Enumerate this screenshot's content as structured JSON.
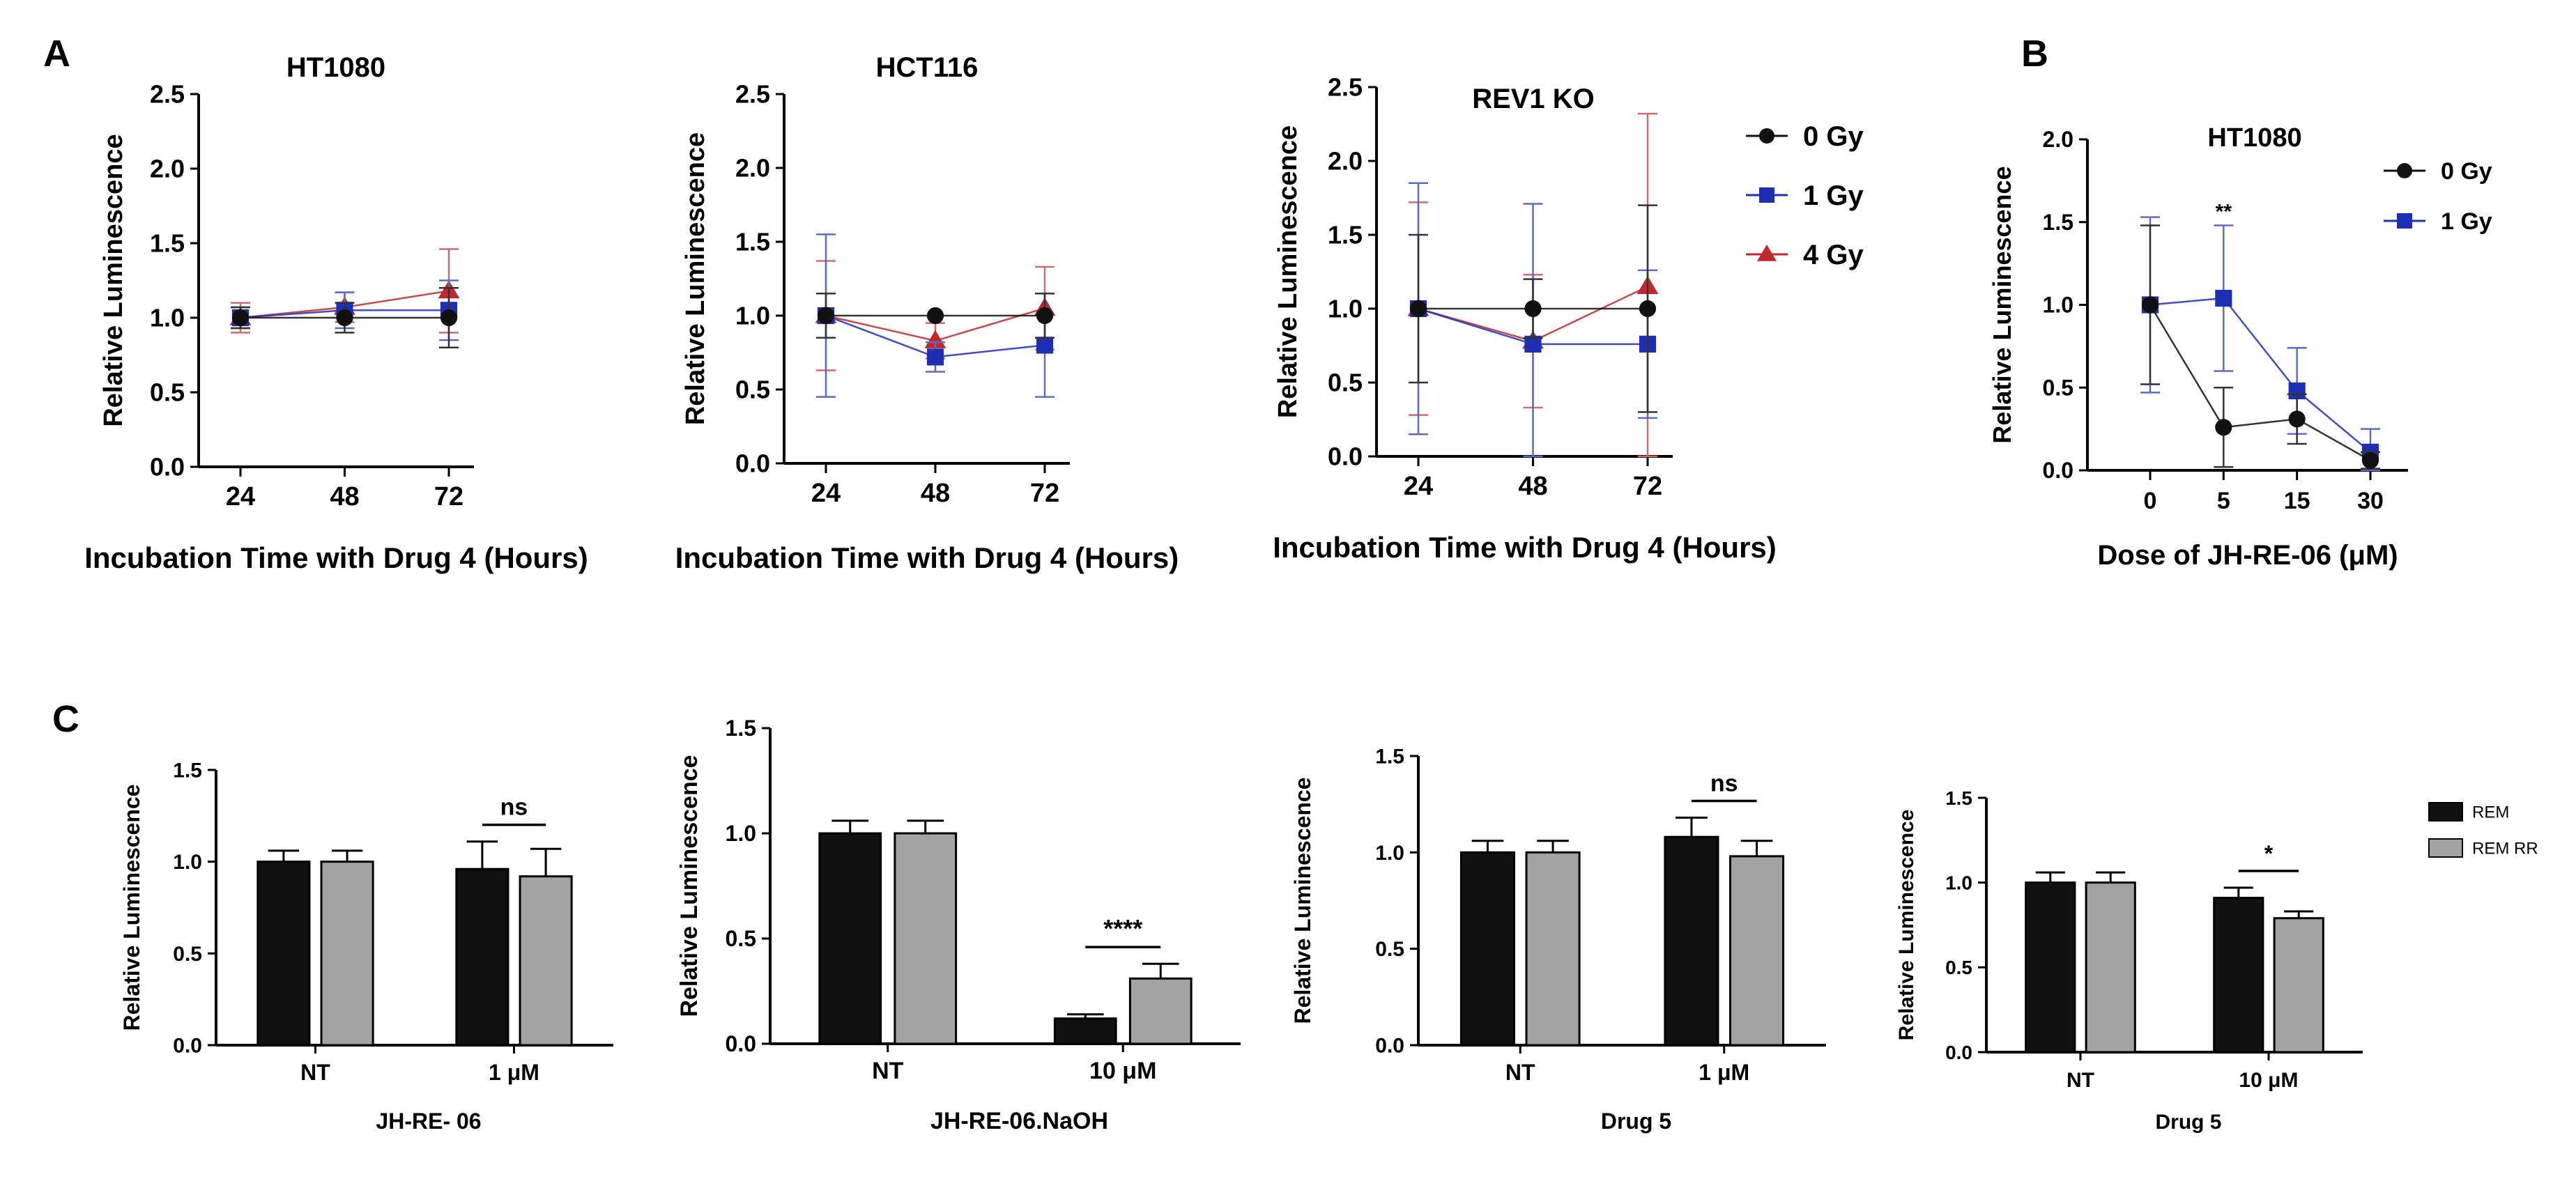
{
  "panel_labels": {
    "a": "A",
    "b": "B",
    "c": "C"
  },
  "colors": {
    "black": "#111111",
    "blue": "#1f2fb4",
    "red": "#c0282d",
    "grey": "#a3a3a3",
    "errblue": "#5b6cc4",
    "errred": "#d06a6e"
  },
  "chart_data": [
    {
      "id": "A1",
      "type": "line",
      "title": "HT1080",
      "xlabel": "Incubation Time with Drug 4 (Hours)",
      "ylabel": "Relative Luminescence",
      "categories": [
        "24",
        "48",
        "72"
      ],
      "ylim": [
        0,
        2.5
      ],
      "yticks": [
        "0.0",
        "0.5",
        "1.0",
        "1.5",
        "2.0",
        "2.5"
      ],
      "series": [
        {
          "name": "0 Gy",
          "values": [
            1.0,
            1.0,
            1.0
          ],
          "err": [
            0.07,
            0.1,
            0.2
          ]
        },
        {
          "name": "1 Gy",
          "values": [
            1.0,
            1.05,
            1.05
          ],
          "err": [
            0.07,
            0.12,
            0.2
          ]
        },
        {
          "name": "4 Gy",
          "values": [
            1.0,
            1.07,
            1.18
          ],
          "err": [
            0.1,
            0.1,
            0.28
          ]
        }
      ]
    },
    {
      "id": "A2",
      "type": "line",
      "title": "HCT116",
      "xlabel": "Incubation Time with Drug 4 (Hours)",
      "ylabel": "Relative Luminescence",
      "categories": [
        "24",
        "48",
        "72"
      ],
      "ylim": [
        0,
        2.5
      ],
      "yticks": [
        "0.0",
        "0.5",
        "1.0",
        "1.5",
        "2.0",
        "2.5"
      ],
      "series": [
        {
          "name": "0 Gy",
          "values": [
            1.0,
            1.0,
            1.0
          ],
          "err": [
            0.15,
            0,
            0.15
          ]
        },
        {
          "name": "1 Gy",
          "values": [
            1.0,
            0.72,
            0.8
          ],
          "err": [
            0.55,
            0.1,
            0.35
          ]
        },
        {
          "name": "4 Gy",
          "values": [
            1.0,
            0.83,
            1.05
          ],
          "err": [
            0.37,
            0.12,
            0.28
          ]
        }
      ]
    },
    {
      "id": "A3",
      "type": "line",
      "title": "REV1 KO",
      "xlabel": "Incubation Time with Drug 4 (Hours)",
      "ylabel": "Relative Luminescence",
      "categories": [
        "24",
        "48",
        "72"
      ],
      "ylim": [
        0,
        2.5
      ],
      "yticks": [
        "0.0",
        "0.5",
        "1.0",
        "1.5",
        "2.0",
        "2.5"
      ],
      "legend": [
        "0 Gy",
        "1 Gy",
        "4 Gy"
      ],
      "series": [
        {
          "name": "0 Gy",
          "values": [
            1.0,
            1.0,
            1.0
          ],
          "err": [
            0.5,
            0.2,
            0.7
          ]
        },
        {
          "name": "1 Gy",
          "values": [
            1.0,
            0.76,
            0.76
          ],
          "err": [
            0.85,
            0.95,
            0.5
          ]
        },
        {
          "name": "4 Gy",
          "values": [
            1.0,
            0.78,
            1.15
          ],
          "err": [
            0.72,
            0.45,
            1.17
          ]
        }
      ]
    },
    {
      "id": "B",
      "type": "line",
      "title": "HT1080",
      "xlabel": "Dose of JH-RE-06 (μM)",
      "ylabel": "Relative Luminescence",
      "categories": [
        "0",
        "5",
        "15",
        "30"
      ],
      "ylim": [
        0,
        2.0
      ],
      "yticks": [
        "0.0",
        "0.5",
        "1.0",
        "1.5",
        "2.0"
      ],
      "legend": [
        "0 Gy",
        "1 Gy"
      ],
      "annotation": "**",
      "series": [
        {
          "name": "0 Gy",
          "values": [
            1.0,
            0.26,
            0.31,
            0.06
          ],
          "err": [
            0.48,
            0.24,
            0.15,
            0.05
          ]
        },
        {
          "name": "1 Gy",
          "values": [
            1.0,
            1.04,
            0.48,
            0.11
          ],
          "err": [
            0.53,
            0.44,
            0.26,
            0.14
          ]
        }
      ]
    },
    {
      "id": "C1",
      "type": "bar",
      "xlabel": "JH-RE- 06",
      "ylabel": "Relative Luminescence",
      "categories": [
        "NT",
        "1 μM"
      ],
      "ylim": [
        0,
        1.5
      ],
      "yticks": [
        "0.0",
        "0.5",
        "1.0",
        "1.5"
      ],
      "series": [
        {
          "name": "REM",
          "values": [
            1.0,
            0.96
          ],
          "err": [
            0.06,
            0.15
          ]
        },
        {
          "name": "REM RR",
          "values": [
            1.0,
            0.92
          ],
          "err": [
            0.06,
            0.15
          ]
        }
      ],
      "sig": {
        "group": 1,
        "label": "ns"
      }
    },
    {
      "id": "C2",
      "type": "bar",
      "xlabel": "JH-RE-06.NaOH",
      "ylabel": "Relative Luminescence",
      "categories": [
        "NT",
        "10 μM"
      ],
      "ylim": [
        0,
        1.5
      ],
      "yticks": [
        "0.0",
        "0.5",
        "1.0",
        "1.5"
      ],
      "series": [
        {
          "name": "REM",
          "values": [
            1.0,
            0.12
          ],
          "err": [
            0.06,
            0.02
          ]
        },
        {
          "name": "REM RR",
          "values": [
            1.0,
            0.31
          ],
          "err": [
            0.06,
            0.07
          ]
        }
      ],
      "sig": {
        "group": 1,
        "label": "****"
      }
    },
    {
      "id": "C3",
      "type": "bar",
      "xlabel": "Drug 5",
      "ylabel": "Relative Luminescence",
      "categories": [
        "NT",
        "1 μM"
      ],
      "ylim": [
        0,
        1.5
      ],
      "yticks": [
        "0.0",
        "0.5",
        "1.0",
        "1.5"
      ],
      "series": [
        {
          "name": "REM",
          "values": [
            1.0,
            1.08
          ],
          "err": [
            0.06,
            0.1
          ]
        },
        {
          "name": "REM RR",
          "values": [
            1.0,
            0.98
          ],
          "err": [
            0.06,
            0.08
          ]
        }
      ],
      "sig": {
        "group": 1,
        "label": "ns"
      }
    },
    {
      "id": "C4",
      "type": "bar",
      "xlabel": "Drug 5",
      "ylabel": "Relative Luminescence",
      "categories": [
        "NT",
        "10 μM"
      ],
      "ylim": [
        0,
        1.5
      ],
      "yticks": [
        "0.0",
        "0.5",
        "1.0",
        "1.5"
      ],
      "legend": [
        "REM",
        "REM RR"
      ],
      "series": [
        {
          "name": "REM",
          "values": [
            1.0,
            0.91
          ],
          "err": [
            0.06,
            0.06
          ]
        },
        {
          "name": "REM RR",
          "values": [
            1.0,
            0.79
          ],
          "err": [
            0.06,
            0.04
          ]
        }
      ],
      "sig": {
        "group": 1,
        "label": "*"
      }
    }
  ]
}
